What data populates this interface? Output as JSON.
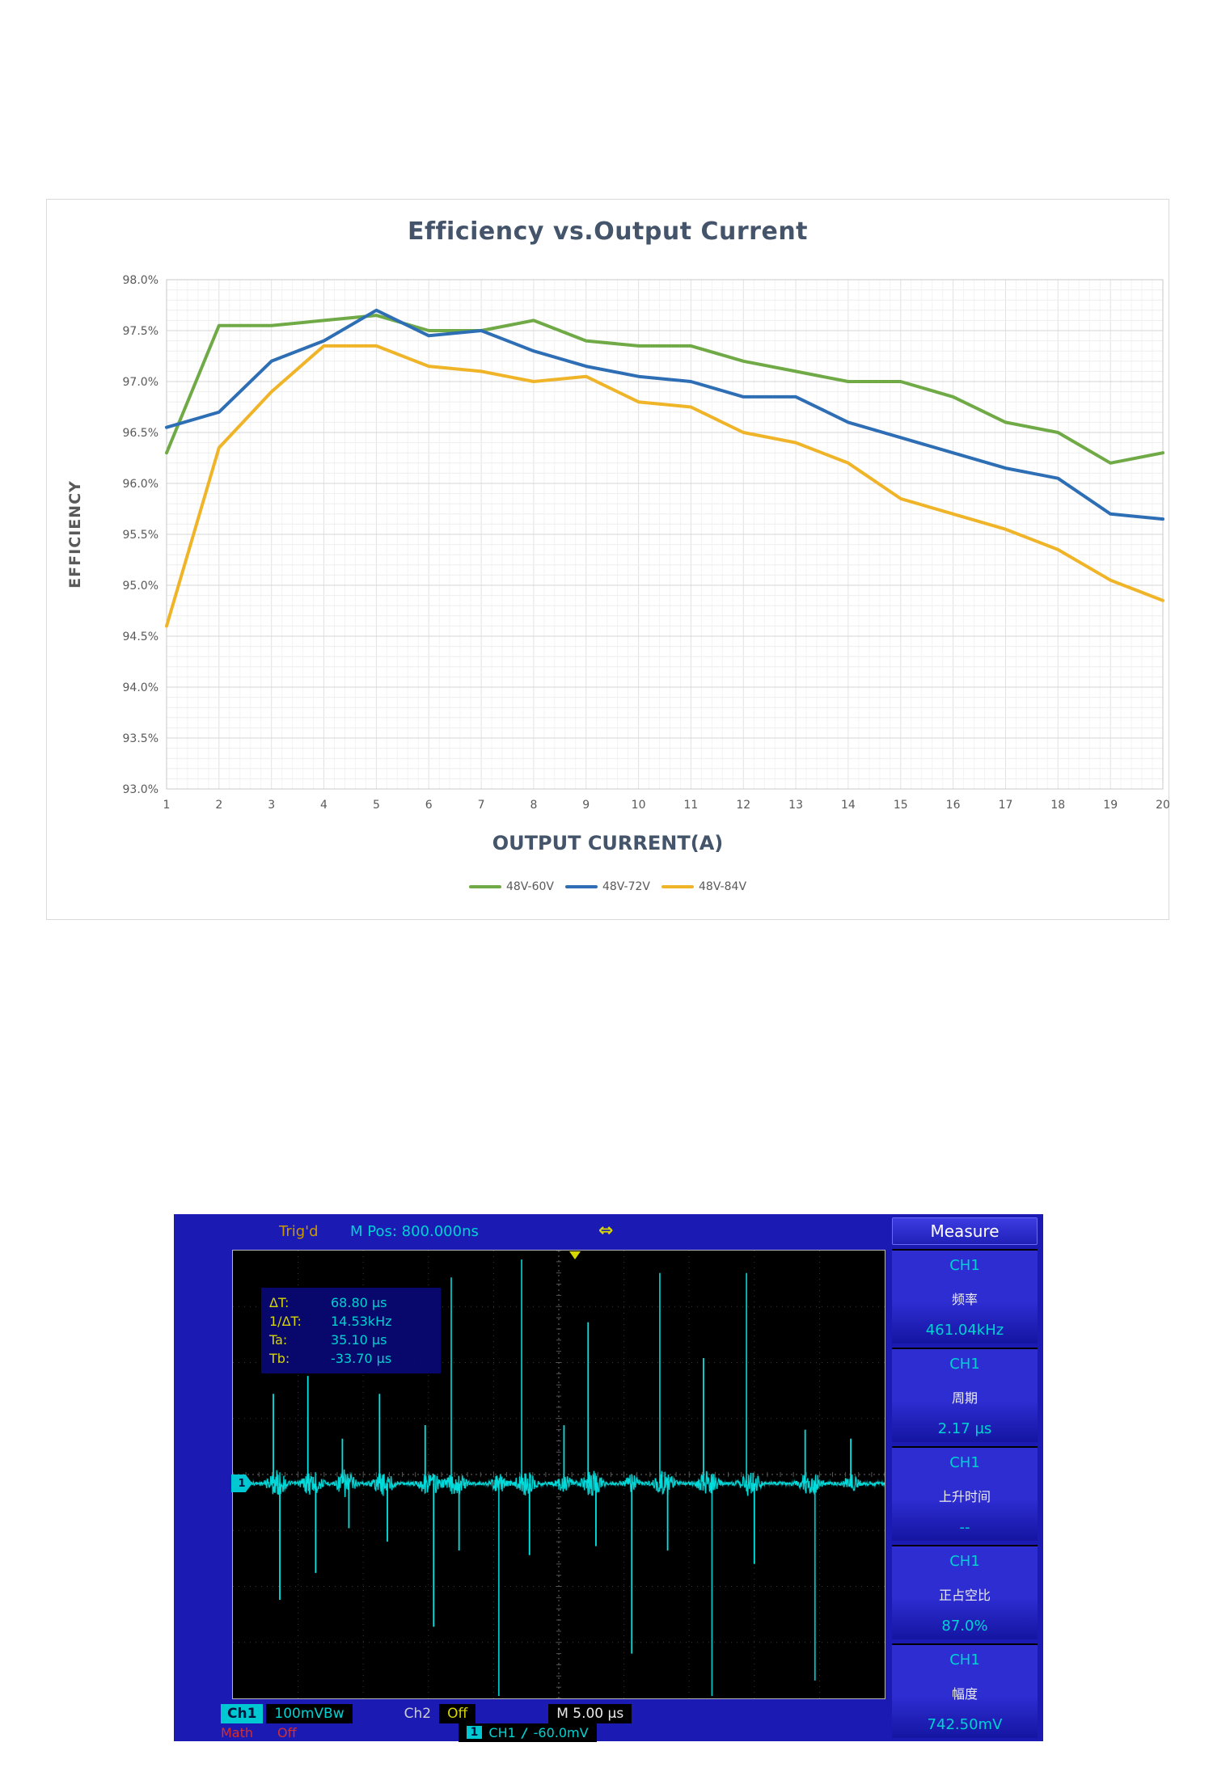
{
  "chart_data": [
    {
      "type": "line",
      "title": "Efficiency vs.Output Current",
      "xlabel": "OUTPUT CURRENT(A)",
      "ylabel": "EFFICIENCY",
      "x": [
        1,
        2,
        3,
        4,
        5,
        6,
        7,
        8,
        9,
        10,
        11,
        12,
        13,
        14,
        15,
        16,
        17,
        18,
        19,
        20
      ],
      "ylim": [
        93.0,
        98.0
      ],
      "ytick_step": 0.5,
      "ytick_format": "percent",
      "grid": true,
      "legend_position": "bottom",
      "series": [
        {
          "name": "48V-60V",
          "color": "#6faa46",
          "values": [
            96.3,
            97.55,
            97.55,
            97.6,
            97.65,
            97.5,
            97.5,
            97.6,
            97.4,
            97.35,
            97.35,
            97.2,
            97.1,
            97.0,
            97.0,
            96.85,
            96.6,
            96.5,
            96.2,
            96.3
          ]
        },
        {
          "name": "48V-72V",
          "color": "#2e6eb5",
          "values": [
            96.55,
            96.7,
            97.2,
            97.4,
            97.7,
            97.45,
            97.5,
            97.3,
            97.15,
            97.05,
            97.0,
            96.85,
            96.85,
            96.6,
            96.45,
            96.3,
            96.15,
            96.05,
            95.7,
            95.65
          ]
        },
        {
          "name": "48V-84V",
          "color": "#f0b428",
          "values": [
            94.6,
            96.35,
            96.9,
            97.35,
            97.35,
            97.15,
            97.1,
            97.0,
            97.05,
            96.8,
            96.75,
            96.5,
            96.4,
            96.2,
            95.85,
            95.7,
            95.55,
            95.35,
            95.05,
            94.85
          ]
        }
      ]
    }
  ],
  "oscilloscope": {
    "status": "Trig'd",
    "m_pos": "M Pos: 800.000ns",
    "trigger_icon": "⇔",
    "measure_title": "Measure",
    "measurements": [
      {
        "channel": "CH1",
        "label": "频率",
        "value": "461.04kHz"
      },
      {
        "channel": "CH1",
        "label": "周期",
        "value": "2.17 µs"
      },
      {
        "channel": "CH1",
        "label": "上升时间",
        "value": "--"
      },
      {
        "channel": "CH1",
        "label": "正占空比",
        "value": "87.0%"
      },
      {
        "channel": "CH1",
        "label": "幅度",
        "value": "742.50mV"
      }
    ],
    "cursor_readout": [
      {
        "label": "ΔT:",
        "value": "68.80 µs"
      },
      {
        "label": "1/ΔT:",
        "value": "14.53kHz"
      },
      {
        "label": "Ta:",
        "value": "35.10 µs"
      },
      {
        "label": "Tb:",
        "value": "-33.70 µs"
      }
    ],
    "bottom": {
      "ch1_tag": "Ch1",
      "ch1_scale": "100mVBw",
      "ch2_tag": "Ch2",
      "ch2_state": "Off",
      "timebase": "M 5.00 µs",
      "math_label": "Math",
      "math_state": "Off",
      "trigger_channel_num": "1",
      "trigger_source": "CH1",
      "trigger_slope": "/",
      "trigger_level": "-60.0mV"
    },
    "channel_marker": "1",
    "colors": {
      "trace": "#00e4e4",
      "panel_blue": "#1b1bb4",
      "accent_yellow": "#d6d600",
      "accent_red": "#d23030"
    },
    "waveform": {
      "baseline": 0.52,
      "divisions_x": 10,
      "divisions_y": 8,
      "spikes": [
        [
          0.062,
          0.2
        ],
        [
          0.072,
          -0.26
        ],
        [
          0.115,
          0.24
        ],
        [
          0.127,
          -0.2
        ],
        [
          0.168,
          0.1
        ],
        [
          0.178,
          -0.1
        ],
        [
          0.225,
          0.2
        ],
        [
          0.237,
          -0.13
        ],
        [
          0.295,
          0.13
        ],
        [
          0.308,
          -0.32
        ],
        [
          0.335,
          0.46
        ],
        [
          0.347,
          -0.15
        ],
        [
          0.408,
          -0.52
        ],
        [
          0.443,
          0.5
        ],
        [
          0.455,
          -0.16
        ],
        [
          0.508,
          0.13
        ],
        [
          0.545,
          0.36
        ],
        [
          0.557,
          -0.14
        ],
        [
          0.612,
          -0.38
        ],
        [
          0.655,
          0.47
        ],
        [
          0.667,
          -0.15
        ],
        [
          0.722,
          0.28
        ],
        [
          0.735,
          -0.52
        ],
        [
          0.788,
          0.47
        ],
        [
          0.8,
          -0.18
        ],
        [
          0.878,
          0.12
        ],
        [
          0.893,
          -0.44
        ],
        [
          0.948,
          0.1
        ]
      ]
    }
  }
}
